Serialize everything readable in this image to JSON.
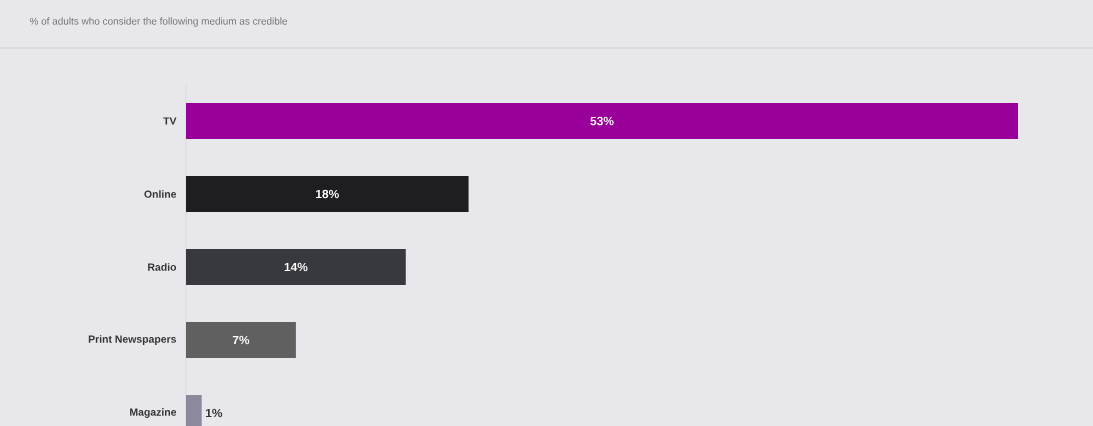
{
  "chart_data": {
    "type": "bar",
    "orientation": "horizontal",
    "title": "% of adults who consider the following medium as credible",
    "categories": [
      "TV",
      "Online",
      "Radio",
      "Print Newspapers",
      "Magazine"
    ],
    "values": [
      53,
      18,
      14,
      7,
      1
    ],
    "colors": [
      "#990099",
      "#1e1e22",
      "#38383f",
      "#606060",
      "#8a8a9c"
    ],
    "value_labels": [
      "53%",
      "18%",
      "14%",
      "7%",
      "1%"
    ]
  }
}
